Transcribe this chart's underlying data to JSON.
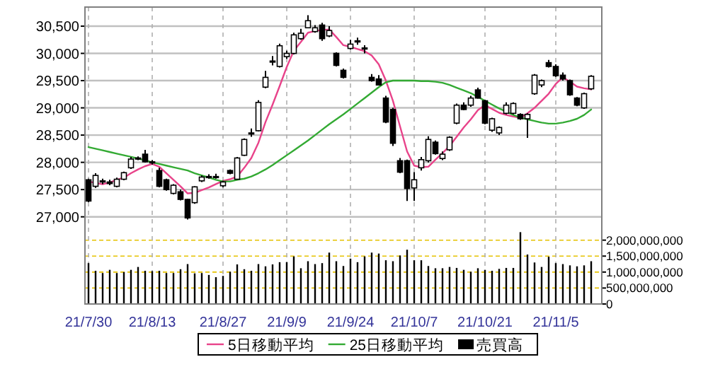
{
  "chart_data": {
    "type": "candlestick",
    "categories": [
      "21/7/30",
      null,
      null,
      null,
      null,
      null,
      null,
      null,
      null,
      "21/8/13",
      null,
      null,
      null,
      null,
      null,
      null,
      null,
      null,
      null,
      "21/8/27",
      null,
      null,
      null,
      null,
      null,
      null,
      null,
      null,
      "21/9/9",
      null,
      null,
      null,
      null,
      null,
      null,
      null,
      null,
      "21/9/24",
      null,
      null,
      null,
      null,
      null,
      null,
      null,
      null,
      "21/10/7",
      null,
      null,
      null,
      null,
      null,
      null,
      null,
      null,
      null,
      "21/10/21",
      null,
      null,
      null,
      null,
      null,
      null,
      null,
      null,
      null,
      "21/11/5",
      null,
      null,
      null,
      null,
      null
    ],
    "ohlc": [
      [
        27680,
        27700,
        27270,
        27290
      ],
      [
        27560,
        27800,
        27530,
        27760
      ],
      [
        27660,
        27700,
        27600,
        27640
      ],
      [
        27640,
        27680,
        27580,
        27610
      ],
      [
        27560,
        27720,
        27540,
        27690
      ],
      [
        27690,
        27830,
        27670,
        27810
      ],
      [
        27900,
        28100,
        27880,
        28060
      ],
      [
        28080,
        28110,
        28040,
        28080
      ],
      [
        28150,
        28230,
        28000,
        28010
      ],
      [
        28010,
        28040,
        27960,
        27990
      ],
      [
        27850,
        27900,
        27540,
        27560
      ],
      [
        27680,
        27700,
        27480,
        27500
      ],
      [
        27430,
        27600,
        27410,
        27580
      ],
      [
        27460,
        27500,
        27300,
        27320
      ],
      [
        27320,
        27330,
        26950,
        26980
      ],
      [
        27260,
        27560,
        27240,
        27550
      ],
      [
        27660,
        27760,
        27640,
        27730
      ],
      [
        27740,
        27780,
        27700,
        27740
      ],
      [
        27730,
        27790,
        27700,
        27740
      ],
      [
        27570,
        27660,
        27540,
        27640
      ],
      [
        27850,
        27870,
        27780,
        27800
      ],
      [
        27690,
        28100,
        27680,
        28080
      ],
      [
        28130,
        28440,
        28120,
        28420
      ],
      [
        28540,
        28620,
        28470,
        28540
      ],
      [
        28580,
        29140,
        28570,
        29100
      ],
      [
        29380,
        29680,
        29360,
        29560
      ],
      [
        29850,
        29950,
        29780,
        29860
      ],
      [
        29760,
        30180,
        29740,
        30140
      ],
      [
        29940,
        30050,
        29900,
        30000
      ],
      [
        30000,
        30380,
        29980,
        30340
      ],
      [
        30270,
        30450,
        30250,
        30370
      ],
      [
        30470,
        30700,
        30460,
        30600
      ],
      [
        30400,
        30520,
        30380,
        30470
      ],
      [
        30520,
        30560,
        30230,
        30270
      ],
      [
        30320,
        30500,
        30300,
        30420
      ],
      [
        30000,
        30020,
        29760,
        29780
      ],
      [
        29690,
        29720,
        29540,
        29560
      ],
      [
        30090,
        30250,
        30070,
        30170
      ],
      [
        30220,
        30290,
        30160,
        30230
      ],
      [
        30090,
        30150,
        30000,
        30100
      ],
      [
        29560,
        29620,
        29480,
        29500
      ],
      [
        29530,
        29600,
        29410,
        29420
      ],
      [
        29180,
        29220,
        28720,
        28740
      ],
      [
        28970,
        29000,
        28300,
        28350
      ],
      [
        28030,
        28080,
        27800,
        27820
      ],
      [
        28030,
        28050,
        27290,
        27520
      ],
      [
        27530,
        27820,
        27290,
        27680
      ],
      [
        27900,
        28100,
        27850,
        28050
      ],
      [
        28030,
        28480,
        28000,
        28420
      ],
      [
        28370,
        28400,
        28140,
        28160
      ],
      [
        28070,
        28200,
        28040,
        28150
      ],
      [
        28230,
        28480,
        28210,
        28460
      ],
      [
        28720,
        29080,
        28700,
        29050
      ],
      [
        29050,
        29100,
        28960,
        28970
      ],
      [
        29050,
        29220,
        29020,
        29180
      ],
      [
        29330,
        29370,
        29170,
        29180
      ],
      [
        29130,
        29150,
        28700,
        28720
      ],
      [
        28590,
        28820,
        28560,
        28800
      ],
      [
        28540,
        28660,
        28500,
        28640
      ],
      [
        28900,
        29100,
        28880,
        29050
      ],
      [
        28900,
        29100,
        28880,
        29080
      ],
      [
        28880,
        28900,
        28780,
        28800
      ],
      [
        28800,
        28900,
        28450,
        28880
      ],
      [
        29260,
        29620,
        29240,
        29600
      ],
      [
        29420,
        29520,
        29380,
        29500
      ],
      [
        29830,
        29880,
        29740,
        29760
      ],
      [
        29760,
        29800,
        29570,
        29590
      ],
      [
        29600,
        29650,
        29500,
        29530
      ],
      [
        29500,
        29520,
        29220,
        29240
      ],
      [
        29180,
        29200,
        29030,
        29050
      ],
      [
        29000,
        29280,
        28980,
        29260
      ],
      [
        29350,
        29600,
        29330,
        29580
      ]
    ],
    "series": [
      {
        "name": "5日移動平均",
        "type": "line",
        "color": "#e8438a",
        "values": [
          27650,
          27620,
          27600,
          27630,
          27680,
          27720,
          27800,
          27870,
          27930,
          27970,
          27920,
          27800,
          27680,
          27560,
          27430,
          27440,
          27490,
          27540,
          27600,
          27660,
          27690,
          27740,
          27900,
          28080,
          28360,
          28740,
          29060,
          29400,
          29750,
          30050,
          30210,
          30380,
          30410,
          30430,
          30440,
          30300,
          30150,
          30120,
          30080,
          30040,
          29960,
          29800,
          29500,
          29130,
          28660,
          28200,
          27940,
          27910,
          27920,
          28050,
          28170,
          28300,
          28470,
          28640,
          28790,
          28960,
          29050,
          28980,
          28910,
          28870,
          28840,
          28820,
          28900,
          29000,
          29130,
          29260,
          29440,
          29560,
          29480,
          29390,
          29360,
          29340
        ]
      },
      {
        "name": "25日移動平均",
        "type": "line",
        "color": "#33aa33",
        "values": [
          28280,
          28250,
          28220,
          28190,
          28160,
          28130,
          28100,
          28070,
          28040,
          28000,
          27970,
          27940,
          27910,
          27880,
          27850,
          27800,
          27760,
          27720,
          27680,
          27650,
          27650,
          27680,
          27700,
          27740,
          27800,
          27870,
          27950,
          28040,
          28130,
          28220,
          28310,
          28400,
          28500,
          28600,
          28700,
          28790,
          28880,
          28980,
          29080,
          29180,
          29280,
          29380,
          29470,
          29500,
          29500,
          29500,
          29500,
          29490,
          29490,
          29480,
          29460,
          29420,
          29370,
          29320,
          29270,
          29200,
          29130,
          29060,
          28990,
          28930,
          28870,
          28820,
          28790,
          28760,
          28730,
          28710,
          28710,
          28730,
          28760,
          28800,
          28870,
          28970
        ]
      },
      {
        "name": "売買高",
        "type": "bar",
        "axis": "y2",
        "color": "#000000",
        "values": [
          1280000000,
          1040000000,
          970000000,
          1070000000,
          970000000,
          1000000000,
          1070000000,
          1160000000,
          1040000000,
          1030000000,
          1040000000,
          970000000,
          970000000,
          1090000000,
          1250000000,
          960000000,
          970000000,
          910000000,
          840000000,
          880000000,
          1010000000,
          1240000000,
          1090000000,
          1040000000,
          1250000000,
          1180000000,
          1240000000,
          1310000000,
          1310000000,
          1490000000,
          1120000000,
          1340000000,
          1250000000,
          1280000000,
          1610000000,
          1340000000,
          1190000000,
          1420000000,
          1310000000,
          1490000000,
          1610000000,
          1580000000,
          1370000000,
          1340000000,
          1520000000,
          1700000000,
          1370000000,
          1370000000,
          1190000000,
          1120000000,
          1120000000,
          1160000000,
          1130000000,
          1070000000,
          1010000000,
          1120000000,
          1070000000,
          1040000000,
          1100000000,
          1130000000,
          1130000000,
          2250000000,
          1550000000,
          1300000000,
          1160000000,
          1480000000,
          1280000000,
          1250000000,
          1210000000,
          1180000000,
          1210000000,
          1340000000
        ]
      }
    ],
    "ylim": [
      25400,
      30850
    ],
    "yticks": [
      {
        "value": 27000,
        "label": "27,000"
      },
      {
        "value": 27500,
        "label": "27,500"
      },
      {
        "value": 28000,
        "label": "28,000"
      },
      {
        "value": 28500,
        "label": "28,500"
      },
      {
        "value": 29000,
        "label": "29,000"
      },
      {
        "value": 29500,
        "label": "29,500"
      },
      {
        "value": 30000,
        "label": "30,000"
      },
      {
        "value": 30500,
        "label": "30,500"
      }
    ],
    "y2lim": [
      0,
      9300000000
    ],
    "y2ticks": [
      {
        "value": 0,
        "label": "0"
      },
      {
        "value": 500000000,
        "label": "500,000,000"
      },
      {
        "value": 1000000000,
        "label": "1,000,000,000"
      },
      {
        "value": 1500000000,
        "label": "1,500,000,000"
      },
      {
        "value": 2000000000,
        "label": "2,000,000,000"
      }
    ],
    "grid": true,
    "legend": "bottom"
  }
}
